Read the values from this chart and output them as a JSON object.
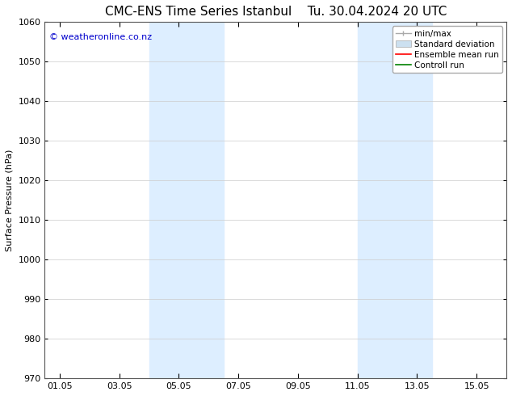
{
  "title_left": "CMC-ENS Time Series Istanbul",
  "title_right": "Tu. 30.04.2024 20 UTC",
  "ylabel": "Surface Pressure (hPa)",
  "xlabel": "",
  "ylim": [
    970,
    1060
  ],
  "yticks": [
    970,
    980,
    990,
    1000,
    1010,
    1020,
    1030,
    1040,
    1050,
    1060
  ],
  "xtick_labels": [
    "01.05",
    "03.05",
    "05.05",
    "07.05",
    "09.05",
    "11.05",
    "13.05",
    "15.05"
  ],
  "xtick_positions": [
    0,
    2,
    4,
    6,
    8,
    10,
    12,
    14
  ],
  "xlim": [
    -0.5,
    15.0
  ],
  "shaded_bands": [
    {
      "x_start": 3.0,
      "x_end": 5.5
    },
    {
      "x_start": 10.0,
      "x_end": 12.5
    }
  ],
  "shade_color": "#ddeeff",
  "watermark_text": "© weatheronline.co.nz",
  "watermark_color": "#0000cc",
  "watermark_fontsize": 8,
  "legend_items": [
    {
      "label": "min/max",
      "type": "minmax",
      "color": "#aaaaaa"
    },
    {
      "label": "Standard deviation",
      "type": "patch",
      "color": "#cce0f0"
    },
    {
      "label": "Ensemble mean run",
      "type": "line",
      "color": "red"
    },
    {
      "label": "Controll run",
      "type": "line",
      "color": "green"
    }
  ],
  "bg_color": "#ffffff",
  "title_fontsize": 11,
  "ylabel_fontsize": 8,
  "tick_fontsize": 8,
  "legend_fontsize": 7.5
}
